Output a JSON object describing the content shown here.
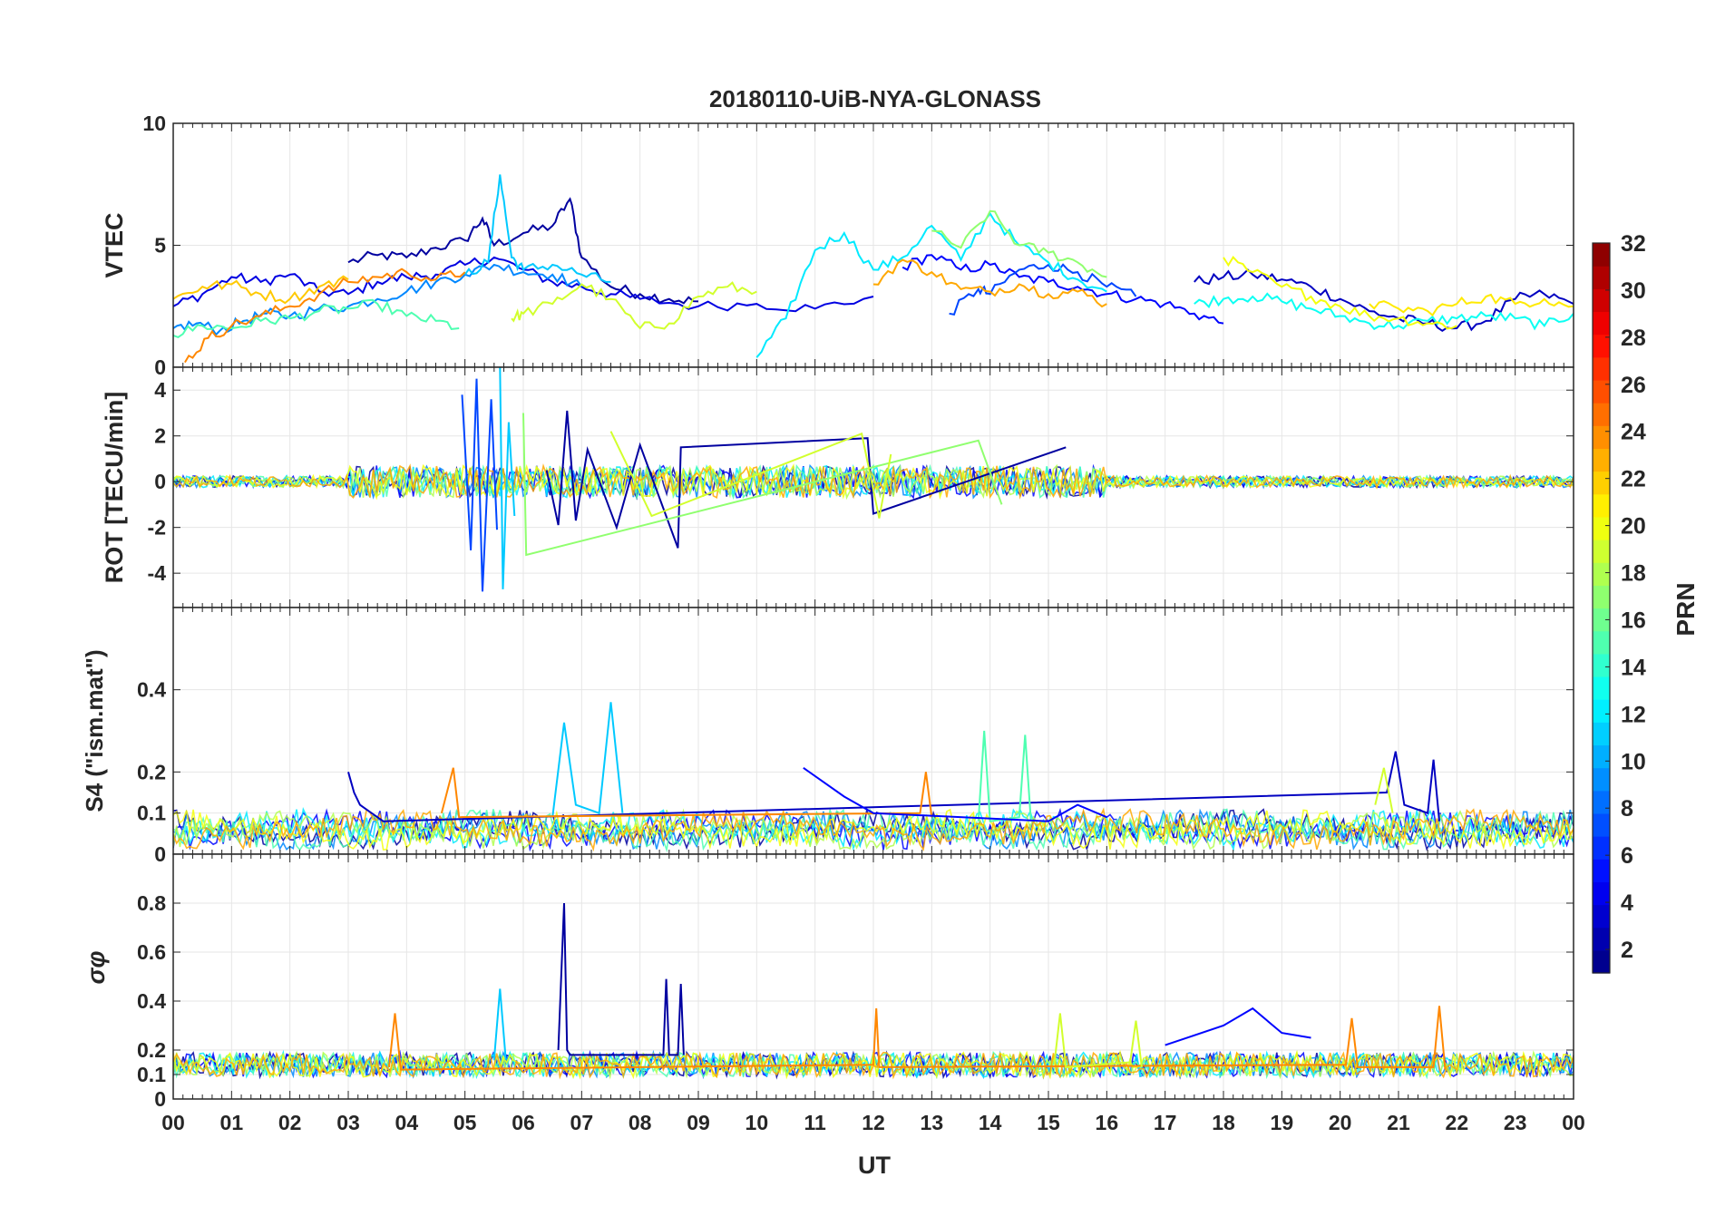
{
  "chart_data": {
    "title": "20180110-UiB-NYA-GLONASS",
    "xlabel": "UT",
    "x_ticks": [
      "00",
      "01",
      "02",
      "03",
      "04",
      "05",
      "06",
      "07",
      "08",
      "09",
      "10",
      "11",
      "12",
      "13",
      "14",
      "15",
      "16",
      "17",
      "18",
      "19",
      "20",
      "21",
      "22",
      "23",
      "00"
    ],
    "xlim": [
      0,
      24
    ],
    "grid": true,
    "panels": [
      {
        "id": "vtec",
        "type": "line",
        "ylabel": "VTEC",
        "ylim": [
          0,
          10
        ],
        "y_ticks": [
          "0",
          "5",
          "10"
        ],
        "y_tick_values": [
          0,
          5,
          10
        ],
        "series": [
          {
            "prn": 2,
            "x": [
              3.0,
              3.5,
              4.0,
              4.5,
              5.0,
              5.3,
              5.5,
              6.0,
              6.5,
              6.8,
              7.0,
              7.5,
              8.0,
              8.5,
              9.0
            ],
            "y": [
              4.3,
              4.6,
              4.5,
              4.9,
              5.2,
              6.1,
              5.0,
              5.5,
              5.8,
              6.9,
              4.5,
              3.3,
              3.0,
              2.8,
              2.7
            ]
          },
          {
            "prn": 4,
            "x": [
              0.0,
              0.5,
              1.0,
              1.5,
              2.0,
              2.5,
              3.0,
              3.5,
              4.0,
              4.5,
              5.0,
              5.5,
              6.0,
              6.5,
              7.0,
              7.5,
              8.0,
              9.0,
              10.0,
              11.0,
              12.0
            ],
            "y": [
              2.5,
              3.0,
              3.7,
              3.5,
              3.8,
              3.1,
              3.0,
              3.5,
              3.7,
              3.8,
              4.2,
              4.5,
              4.0,
              3.5,
              3.3,
              3.0,
              2.8,
              2.5,
              2.6,
              2.4,
              2.9
            ]
          },
          {
            "prn": 3,
            "x": [
              17.5,
              18.0,
              18.5,
              19.0,
              19.5,
              20.0,
              20.5,
              21.0,
              21.5,
              22.0,
              22.5,
              23.0,
              23.5,
              24.0
            ],
            "y": [
              3.5,
              3.7,
              3.8,
              3.6,
              3.3,
              2.8,
              2.3,
              2.0,
              1.8,
              1.6,
              1.9,
              2.8,
              3.0,
              2.6
            ]
          },
          {
            "prn": 5,
            "x": [
              12.5,
              13.0,
              13.5,
              14.0,
              14.5,
              15.0,
              15.5,
              16.0,
              16.5,
              17.0,
              17.5,
              18.0
            ],
            "y": [
              4.1,
              4.6,
              4.0,
              4.2,
              3.7,
              3.5,
              3.3,
              3.0,
              2.8,
              2.6,
              2.2,
              1.8
            ]
          },
          {
            "prn": 7,
            "x": [
              13.3,
              13.8,
              14.0,
              14.5,
              15.0,
              15.5,
              16.0,
              16.5
            ],
            "y": [
              2.2,
              3.2,
              3.0,
              4.0,
              4.2,
              3.9,
              3.3,
              2.9
            ]
          },
          {
            "prn": 9,
            "x": [
              0.0,
              0.4,
              0.8,
              1.2,
              1.6,
              2.0,
              2.5,
              3.0,
              3.5,
              4.0,
              4.5,
              5.0,
              5.5,
              6.0,
              6.5,
              7.0
            ],
            "y": [
              1.6,
              1.8,
              1.5,
              1.9,
              2.2,
              2.1,
              2.4,
              2.5,
              2.8,
              3.1,
              3.5,
              3.8,
              4.2,
              3.9,
              3.8,
              3.3
            ]
          },
          {
            "prn": 11,
            "x": [
              5.0,
              5.4,
              5.6,
              5.8,
              6.0,
              6.5,
              7.0,
              7.5
            ],
            "y": [
              3.8,
              4.3,
              7.9,
              4.5,
              4.0,
              4.2,
              3.8,
              3.5
            ]
          },
          {
            "prn": 12,
            "x": [
              10.0,
              10.5,
              11.0,
              11.5,
              12.0,
              12.5,
              13.0,
              13.5,
              14.0,
              14.5,
              15.0,
              15.5,
              16.0
            ],
            "y": [
              0.4,
              2.0,
              4.8,
              5.5,
              4.0,
              4.5,
              5.8,
              4.4,
              6.3,
              5.0,
              4.3,
              3.6,
              3.1
            ]
          },
          {
            "prn": 13,
            "x": [
              17.5,
              18.0,
              18.5,
              19.0,
              19.5,
              20.0,
              20.5,
              21.0,
              21.5,
              22.0,
              22.5,
              23.0,
              23.5,
              24.0
            ],
            "y": [
              2.6,
              2.8,
              2.9,
              2.7,
              2.4,
              2.1,
              1.8,
              1.7,
              1.9,
              2.0,
              2.1,
              2.0,
              1.7,
              2.2
            ]
          },
          {
            "prn": 15,
            "x": [
              0.0,
              0.5,
              1.0,
              1.5,
              2.0,
              2.5,
              3.0,
              3.5,
              4.0,
              4.5,
              4.9
            ],
            "y": [
              1.3,
              1.7,
              1.6,
              1.9,
              2.0,
              2.3,
              2.4,
              2.6,
              2.1,
              1.9,
              1.6
            ]
          },
          {
            "prn": 17,
            "x": [
              13.0,
              13.5,
              14.0,
              14.5,
              15.0,
              15.5,
              16.0
            ],
            "y": [
              5.6,
              4.9,
              6.4,
              5.0,
              4.7,
              4.3,
              3.7
            ]
          },
          {
            "prn": 19,
            "x": [
              5.8,
              6.0,
              6.5,
              7.0,
              7.5,
              8.0,
              8.5,
              9.0,
              9.5,
              10.0
            ],
            "y": [
              2.0,
              2.2,
              2.6,
              3.4,
              2.8,
              1.6,
              1.8,
              2.9,
              3.3,
              3.1
            ]
          },
          {
            "prn": 20,
            "x": [
              18.0,
              18.5,
              19.0,
              19.5,
              20.0,
              20.5,
              21.0,
              21.5,
              22.0
            ],
            "y": [
              4.5,
              3.9,
              3.3,
              2.9,
              2.5,
              2.1,
              2.0,
              1.8,
              1.7
            ]
          },
          {
            "prn": 22,
            "x": [
              0.0,
              0.5,
              1.0,
              1.5,
              2.0,
              2.5,
              3.0
            ],
            "y": [
              2.8,
              3.3,
              3.4,
              3.0,
              2.8,
              3.3,
              3.6
            ]
          },
          {
            "prn": 23,
            "x": [
              12.0,
              12.5,
              13.0,
              13.5,
              14.0,
              14.5,
              15.0,
              15.5,
              16.0
            ],
            "y": [
              3.4,
              4.4,
              3.9,
              3.2,
              3.1,
              3.4,
              3.0,
              3.1,
              2.6
            ]
          },
          {
            "prn": 24,
            "x": [
              0.2,
              0.6,
              1.0,
              1.5,
              2.0,
              2.5,
              3.0,
              3.5,
              4.0,
              4.5,
              5.0
            ],
            "y": [
              0.2,
              1.2,
              1.7,
              2.1,
              2.5,
              3.0,
              3.5,
              3.7,
              3.9,
              3.6,
              3.9
            ]
          },
          {
            "prn": 21,
            "x": [
              20.5,
              21.0,
              21.5,
              22.0,
              22.5,
              23.0,
              23.5,
              24.0
            ],
            "y": [
              2.6,
              2.4,
              2.3,
              2.6,
              2.9,
              2.6,
              2.8,
              2.5
            ]
          }
        ]
      },
      {
        "id": "rot",
        "type": "line",
        "ylabel": "ROT [TECU/min]",
        "ylim": [
          -5.5,
          5
        ],
        "y_ticks": [
          "-4",
          "-2",
          "0",
          "2",
          "4"
        ],
        "y_tick_values": [
          -4,
          -2,
          0,
          2,
          4
        ],
        "series": [
          {
            "prn": 2,
            "x": [
              6.4,
              6.6,
              6.75,
              6.9,
              7.1,
              7.6,
              8.0,
              8.65,
              8.7,
              11.9,
              12.0,
              15.3
            ],
            "y": [
              0.5,
              -1.9,
              3.1,
              -1.7,
              1.4,
              -2.0,
              1.6,
              -2.9,
              1.5,
              1.9,
              -1.4,
              1.5
            ]
          },
          {
            "prn": 7,
            "x": [
              4.95,
              5.1,
              5.2,
              5.3,
              5.45,
              5.55
            ],
            "y": [
              3.8,
              -3.0,
              4.5,
              -4.8,
              3.6,
              -2.1
            ]
          },
          {
            "prn": 11,
            "x": [
              5.6,
              5.65,
              5.75,
              5.85
            ],
            "y": [
              5.0,
              -4.7,
              2.6,
              -1.5
            ]
          },
          {
            "prn": 17,
            "x": [
              6.0,
              6.05,
              13.8,
              14.2
            ],
            "y": [
              3.0,
              -3.2,
              1.8,
              -1.0
            ]
          },
          {
            "prn": 19,
            "x": [
              7.5,
              8.2,
              11.8,
              12.1,
              12.3
            ],
            "y": [
              2.2,
              -1.5,
              2.1,
              -1.6,
              1.2
            ]
          }
        ]
      },
      {
        "id": "s4",
        "type": "line",
        "ylabel": "S4 (\"ism.mat\")",
        "ylim": [
          0,
          0.6
        ],
        "y_ticks": [
          "0",
          "0.1",
          "0.2",
          "0.4"
        ],
        "y_tick_values": [
          0,
          0.1,
          0.2,
          0.4
        ],
        "series": [
          {
            "prn": 11,
            "x": [
              6.5,
              6.7,
              6.9,
              7.3,
              7.5,
              7.7
            ],
            "y": [
              0.09,
              0.32,
              0.12,
              0.1,
              0.37,
              0.1
            ]
          },
          {
            "prn": 3,
            "x": [
              3.0,
              3.1,
              3.2,
              3.4,
              3.6,
              20.8,
              20.95,
              21.1,
              21.5,
              21.6,
              21.7
            ],
            "y": [
              0.2,
              0.15,
              0.12,
              0.1,
              0.08,
              0.15,
              0.25,
              0.12,
              0.1,
              0.23,
              0.08
            ]
          },
          {
            "prn": 24,
            "x": [
              4.6,
              4.8,
              4.9,
              12.8,
              12.9,
              13.0
            ],
            "y": [
              0.1,
              0.21,
              0.09,
              0.1,
              0.2,
              0.09
            ]
          },
          {
            "prn": 15,
            "x": [
              13.8,
              13.9,
              14.0,
              14.5,
              14.6,
              14.7
            ],
            "y": [
              0.08,
              0.3,
              0.08,
              0.09,
              0.29,
              0.08
            ]
          },
          {
            "prn": 19,
            "x": [
              20.6,
              20.75,
              20.9
            ],
            "y": [
              0.12,
              0.21,
              0.1
            ]
          },
          {
            "prn": 5,
            "x": [
              10.8,
              11.5,
              12.0,
              15.0,
              15.5,
              16.0
            ],
            "y": [
              0.21,
              0.14,
              0.1,
              0.08,
              0.12,
              0.09
            ]
          }
        ]
      },
      {
        "id": "sigma_phi",
        "type": "line",
        "ylabel": "σφ",
        "ylim": [
          0,
          1
        ],
        "y_ticks": [
          "0",
          "0.1",
          "0.2",
          "0.4",
          "0.6",
          "0.8"
        ],
        "y_tick_values": [
          0,
          0.1,
          0.2,
          0.4,
          0.6,
          0.8
        ],
        "series": [
          {
            "prn": 2,
            "x": [
              6.6,
              6.7,
              6.75,
              6.8,
              8.4,
              8.45,
              8.5,
              8.65,
              8.7,
              8.75
            ],
            "y": [
              0.2,
              0.8,
              0.2,
              0.18,
              0.18,
              0.49,
              0.18,
              0.18,
              0.47,
              0.18
            ]
          },
          {
            "prn": 11,
            "x": [
              5.5,
              5.6,
              5.7
            ],
            "y": [
              0.16,
              0.45,
              0.16
            ]
          },
          {
            "prn": 5,
            "x": [
              17.0,
              18.0,
              18.5,
              19.0,
              19.5
            ],
            "y": [
              0.22,
              0.3,
              0.37,
              0.27,
              0.25
            ]
          },
          {
            "prn": 24,
            "x": [
              3.7,
              3.8,
              3.9,
              12.0,
              12.05,
              12.1,
              20.1,
              20.2,
              20.3,
              21.6,
              21.7,
              21.8
            ],
            "y": [
              0.13,
              0.35,
              0.12,
              0.14,
              0.37,
              0.13,
              0.14,
              0.33,
              0.13,
              0.13,
              0.38,
              0.12
            ]
          },
          {
            "prn": 19,
            "x": [
              15.1,
              15.2,
              15.3,
              16.4,
              16.5,
              16.6
            ],
            "y": [
              0.14,
              0.35,
              0.13,
              0.15,
              0.32,
              0.13
            ]
          }
        ]
      }
    ],
    "colorbar": {
      "label": "PRN",
      "range": [
        1,
        32
      ],
      "ticks": [
        "2",
        "4",
        "6",
        "8",
        "10",
        "12",
        "14",
        "16",
        "18",
        "20",
        "22",
        "24",
        "26",
        "28",
        "30",
        "32"
      ],
      "tick_values": [
        2,
        4,
        6,
        8,
        10,
        12,
        14,
        16,
        18,
        20,
        22,
        24,
        26,
        28,
        30,
        32
      ],
      "colormap": "jet",
      "colors": [
        "#00007f",
        "#0000ff",
        "#007fff",
        "#00ffff",
        "#7fff7f",
        "#ffff00",
        "#ff7f00",
        "#ff0000",
        "#7f0000"
      ]
    }
  }
}
